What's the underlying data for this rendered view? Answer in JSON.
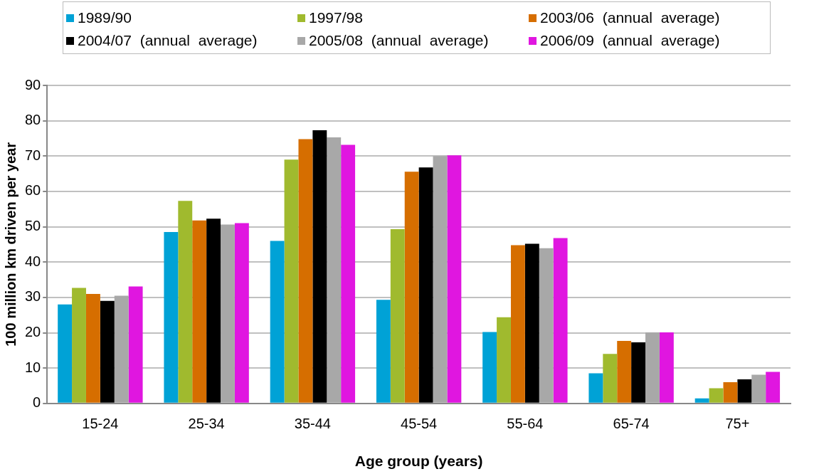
{
  "chart_data": {
    "type": "bar",
    "xlabel": "Age group (years)",
    "ylabel": "100 million km driven per year",
    "categories": [
      "15-24",
      "25-34",
      "35-44",
      "45-54",
      "55-64",
      "65-74",
      "75+"
    ],
    "series": [
      {
        "name": "1989/90",
        "color": "#00a2d6",
        "values": [
          28,
          48.5,
          46,
          29.3,
          20.2,
          8.5,
          1.4
        ]
      },
      {
        "name": "1997/98",
        "color": "#a0ba2e",
        "values": [
          32.7,
          57.3,
          69,
          49.3,
          24.4,
          14,
          4.3
        ]
      },
      {
        "name": "2003/06 (annual average)",
        "color": "#d66e00",
        "values": [
          31,
          51.8,
          74.8,
          65.6,
          44.8,
          17.7,
          6
        ]
      },
      {
        "name": "2004/07 (annual average)",
        "color": "#000000",
        "values": [
          29,
          52.3,
          77.3,
          66.8,
          45.2,
          17.3,
          6.8
        ]
      },
      {
        "name": "2005/08 (annual average)",
        "color": "#a8a8a8",
        "values": [
          30.5,
          50.6,
          75.3,
          70,
          43.9,
          20.1,
          8.1
        ]
      },
      {
        "name": "2006/09 (annual average)",
        "color": "#e016e0",
        "values": [
          33.1,
          51,
          73.2,
          70.2,
          46.8,
          20.1,
          8.9
        ]
      }
    ],
    "ylim": [
      0,
      90
    ],
    "yticks": [
      0,
      10,
      20,
      30,
      40,
      50,
      60,
      70,
      80,
      90
    ],
    "grid": "y",
    "legend": "top"
  }
}
